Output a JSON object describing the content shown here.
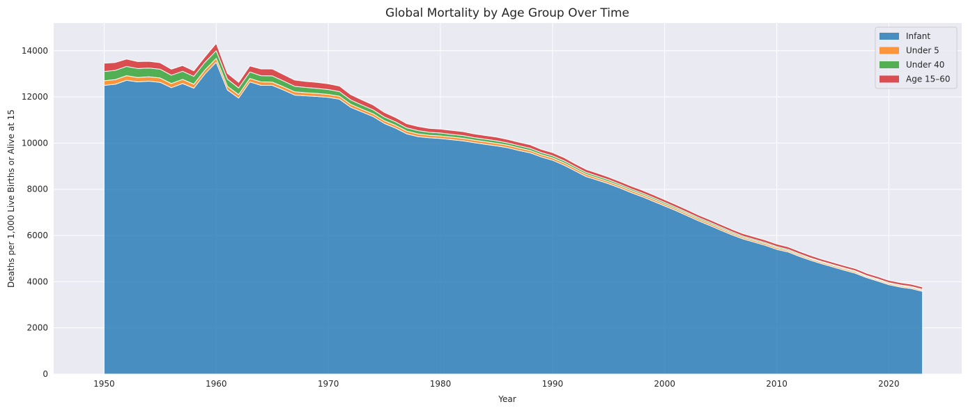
{
  "chart_data": {
    "type": "area",
    "stacked": true,
    "title": "Global Mortality by Age Group Over Time",
    "xlabel": "Year",
    "ylabel": "Deaths per 1,000 Live Births or Alive at 15",
    "xlim": [
      1945.5,
      2026.5
    ],
    "ylim": [
      0,
      15200
    ],
    "xticks": [
      1950,
      1960,
      1970,
      1980,
      1990,
      2000,
      2010,
      2020
    ],
    "yticks": [
      0,
      2000,
      4000,
      6000,
      8000,
      10000,
      12000,
      14000
    ],
    "grid": true,
    "legend_position": "top-right",
    "x": [
      1950,
      1951,
      1952,
      1953,
      1954,
      1955,
      1956,
      1957,
      1958,
      1959,
      1960,
      1961,
      1962,
      1963,
      1964,
      1965,
      1966,
      1967,
      1968,
      1969,
      1970,
      1971,
      1972,
      1973,
      1974,
      1975,
      1976,
      1977,
      1978,
      1979,
      1980,
      1981,
      1982,
      1983,
      1984,
      1985,
      1986,
      1987,
      1988,
      1989,
      1990,
      1991,
      1992,
      1993,
      1994,
      1995,
      1996,
      1997,
      1998,
      1999,
      2000,
      2001,
      2002,
      2003,
      2004,
      2005,
      2006,
      2007,
      2008,
      2009,
      2010,
      2011,
      2012,
      2013,
      2014,
      2015,
      2016,
      2017,
      2018,
      2019,
      2020,
      2021,
      2022,
      2023
    ],
    "series": [
      {
        "name": "Infant",
        "color": "#1f77b4",
        "values": [
          12500,
          12550,
          12720,
          12650,
          12680,
          12630,
          12400,
          12580,
          12380,
          13000,
          13500,
          12300,
          11950,
          12650,
          12500,
          12500,
          12300,
          12080,
          12050,
          12020,
          11980,
          11900,
          11550,
          11350,
          11150,
          10850,
          10650,
          10400,
          10280,
          10230,
          10200,
          10150,
          10100,
          10020,
          9950,
          9880,
          9800,
          9680,
          9580,
          9400,
          9260,
          9050,
          8800,
          8550,
          8400,
          8240,
          8060,
          7860,
          7680,
          7480,
          7280,
          7080,
          6860,
          6640,
          6440,
          6230,
          6030,
          5850,
          5710,
          5570,
          5400,
          5290,
          5100,
          4930,
          4780,
          4640,
          4500,
          4370,
          4180,
          4030,
          3870,
          3770,
          3700,
          3580
        ]
      },
      {
        "name": "Under 5",
        "color": "#ff7f0e",
        "values": [
          200,
          200,
          200,
          190,
          190,
          190,
          180,
          180,
          170,
          170,
          170,
          160,
          150,
          150,
          150,
          140,
          140,
          140,
          130,
          130,
          130,
          130,
          130,
          120,
          120,
          120,
          120,
          120,
          120,
          110,
          110,
          110,
          110,
          110,
          110,
          110,
          110,
          110,
          100,
          100,
          100,
          100,
          100,
          100,
          90,
          90,
          90,
          90,
          90,
          90,
          80,
          80,
          80,
          80,
          80,
          80,
          70,
          70,
          70,
          70,
          70,
          60,
          60,
          60,
          60,
          60,
          60,
          60,
          50,
          50,
          50,
          50,
          50,
          50
        ]
      },
      {
        "name": "Under 40",
        "color": "#2ca02c",
        "values": [
          400,
          400,
          400,
          390,
          380,
          380,
          360,
          350,
          340,
          330,
          330,
          310,
          290,
          280,
          270,
          270,
          250,
          240,
          230,
          220,
          210,
          200,
          190,
          180,
          170,
          160,
          150,
          140,
          140,
          130,
          130,
          120,
          120,
          110,
          110,
          110,
          100,
          100,
          100,
          90,
          90,
          90,
          80,
          80,
          80,
          80,
          70,
          70,
          70,
          70,
          70,
          60,
          60,
          60,
          60,
          60,
          60,
          50,
          50,
          50,
          50,
          50,
          50,
          40,
          40,
          40,
          40,
          40,
          40,
          40,
          40,
          40,
          40,
          40
        ]
      },
      {
        "name": "Age 15–60",
        "color": "#d62728",
        "values": [
          360,
          340,
          320,
          300,
          290,
          280,
          260,
          250,
          240,
          240,
          320,
          250,
          240,
          260,
          290,
          300,
          280,
          270,
          260,
          260,
          250,
          240,
          230,
          220,
          210,
          200,
          190,
          180,
          180,
          170,
          170,
          170,
          170,
          160,
          160,
          160,
          150,
          150,
          150,
          140,
          140,
          140,
          130,
          130,
          130,
          120,
          120,
          120,
          120,
          120,
          120,
          120,
          120,
          110,
          110,
          110,
          110,
          110,
          110,
          110,
          110,
          110,
          110,
          110,
          100,
          100,
          100,
          100,
          100,
          100,
          100,
          100,
          100,
          100
        ]
      }
    ]
  }
}
